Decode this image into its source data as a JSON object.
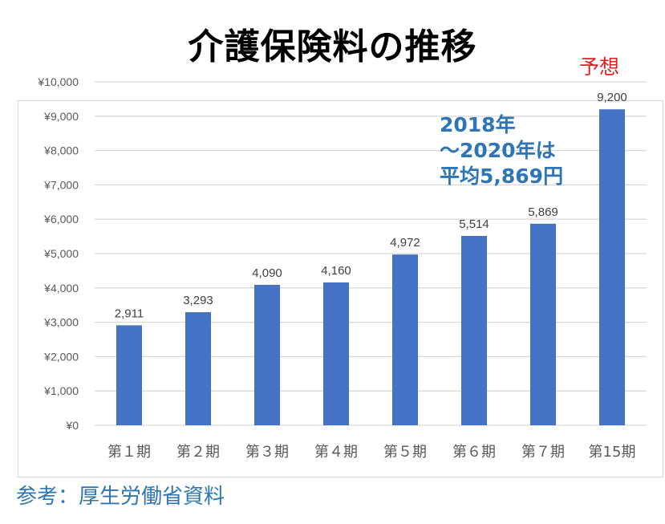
{
  "chart_data": {
    "type": "bar",
    "title": "介護保険料の推移",
    "categories": [
      "第１期",
      "第２期",
      "第３期",
      "第４期",
      "第５期",
      "第６期",
      "第７期",
      "第15期"
    ],
    "values": [
      2911,
      3293,
      4090,
      4160,
      4972,
      5514,
      5869,
      9200
    ],
    "data_labels": [
      "2,911",
      "3,293",
      "4,090",
      "4,160",
      "4,972",
      "5,514",
      "5,869",
      "9,200"
    ],
    "yticks": [
      0,
      1000,
      2000,
      3000,
      4000,
      5000,
      6000,
      7000,
      8000,
      9000,
      10000
    ],
    "ytick_labels": [
      "¥0",
      "¥1,000",
      "¥2,000",
      "¥3,000",
      "¥4,000",
      "¥5,000",
      "¥6,000",
      "¥7,000",
      "¥8,000",
      "¥9,000",
      "¥10,000"
    ],
    "ylim": [
      0,
      10000
    ],
    "grid": true,
    "bar_color": "#4472c4",
    "annotations": {
      "forecast": "予想",
      "note_lines": [
        "2018年",
        "～2020年は",
        "平均5,869円"
      ]
    }
  },
  "source": "参考：厚生労働省資料"
}
